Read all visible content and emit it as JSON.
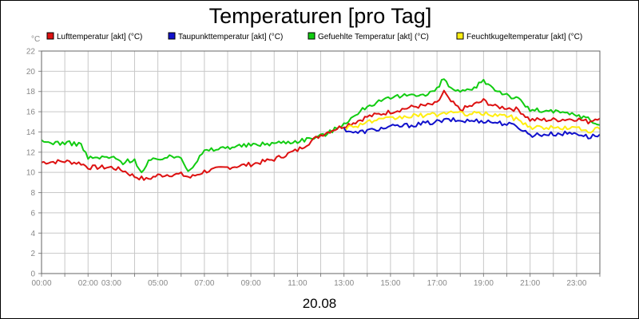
{
  "chart_data": {
    "type": "line",
    "title": "Temperaturen [pro Tag]",
    "ylabel": "°C",
    "xlabel": "20.08",
    "ylim": [
      0,
      22
    ],
    "yticks": [
      0,
      2,
      4,
      6,
      8,
      10,
      12,
      14,
      16,
      18,
      20,
      22
    ],
    "xlim": [
      0,
      24
    ],
    "xticks": [
      {
        "t": 0,
        "label": "00:00"
      },
      {
        "t": 2,
        "label": "02:00"
      },
      {
        "t": 3,
        "label": "03:00"
      },
      {
        "t": 5,
        "label": "05:00"
      },
      {
        "t": 7,
        "label": "07:00"
      },
      {
        "t": 9,
        "label": "09:00"
      },
      {
        "t": 11,
        "label": "11:00"
      },
      {
        "t": 13,
        "label": "13:00"
      },
      {
        "t": 15,
        "label": "15:00"
      },
      {
        "t": 17,
        "label": "17:00"
      },
      {
        "t": 19,
        "label": "19:00"
      },
      {
        "t": 21,
        "label": "21:00"
      },
      {
        "t": 23,
        "label": "23:00"
      }
    ],
    "grid": true,
    "legend_position": "top",
    "series": [
      {
        "name": "Lufttemperatur [akt] (°C)",
        "color": "#dd1111",
        "x": [
          0,
          1,
          1.7,
          2,
          3,
          3.5,
          4,
          4.5,
          5,
          5.5,
          6,
          6.4,
          7,
          8,
          9,
          10,
          11,
          12,
          12.5,
          13,
          13.5,
          14,
          15,
          16,
          16.5,
          17,
          17.3,
          17.5,
          18,
          18.5,
          19,
          19.5,
          20,
          20.5,
          21,
          22,
          23,
          23.5,
          24
        ],
        "y": [
          11,
          11.1,
          10.9,
          10.5,
          10.5,
          10.2,
          9.6,
          9.3,
          9.7,
          9.8,
          9.8,
          9.5,
          10.1,
          10.5,
          10.8,
          11.3,
          12.2,
          13.7,
          14.2,
          14.6,
          15,
          15.5,
          16,
          16.5,
          16.6,
          16.8,
          18,
          17.2,
          16.2,
          16.6,
          17.1,
          16.5,
          16.4,
          16.2,
          15.2,
          15.2,
          15.3,
          15,
          15.5
        ]
      },
      {
        "name": "Taupunkttemperatur [akt] (°C)",
        "color": "#1111cc",
        "x": [
          13,
          13.5,
          14,
          15,
          16,
          17,
          17.5,
          18,
          19,
          20,
          20.5,
          21,
          22,
          23,
          23.5,
          24
        ],
        "y": [
          14.3,
          13.9,
          14.1,
          14.5,
          14.7,
          15,
          15.2,
          15.1,
          15.1,
          14.8,
          14.5,
          13.7,
          13.8,
          13.9,
          13.5,
          13.7
        ]
      },
      {
        "name": "Gefuehlte Temperatur [akt] (°C)",
        "color": "#11cc11",
        "x": [
          0,
          1,
          1.7,
          2,
          3,
          3.5,
          4,
          4.3,
          4.6,
          5,
          6,
          6.3,
          6.6,
          7,
          8,
          9,
          10,
          11,
          12,
          12.5,
          13,
          13.5,
          14,
          15,
          16,
          16.5,
          17,
          17.3,
          17.5,
          18,
          18.5,
          19,
          19.5,
          20,
          20.5,
          21,
          22,
          23,
          23.5,
          24
        ],
        "y": [
          13,
          12.9,
          12.8,
          11.4,
          11.5,
          11,
          11.3,
          9.9,
          11,
          11.4,
          11.6,
          10.2,
          10.9,
          12.1,
          12.5,
          12.7,
          12.9,
          13.1,
          13.6,
          14.1,
          14.9,
          15.6,
          16.6,
          17.3,
          17.8,
          17.6,
          18.2,
          19.3,
          18.5,
          17.9,
          18.1,
          19.1,
          18.2,
          17.7,
          17.2,
          16.2,
          16,
          15.7,
          15.3,
          14.6
        ]
      },
      {
        "name": "Feuchtkugeltemperatur [akt] (°C)",
        "color": "#ffee11",
        "x": [
          13,
          13.5,
          14,
          15,
          16,
          17,
          17.5,
          18,
          19,
          20,
          20.5,
          21,
          22,
          23,
          23.5,
          24
        ],
        "y": [
          14.4,
          14.6,
          15,
          15.3,
          15.6,
          15.7,
          16,
          15.8,
          15.8,
          15.6,
          15.2,
          14.5,
          14.4,
          14.4,
          14.1,
          14.3
        ]
      }
    ]
  }
}
